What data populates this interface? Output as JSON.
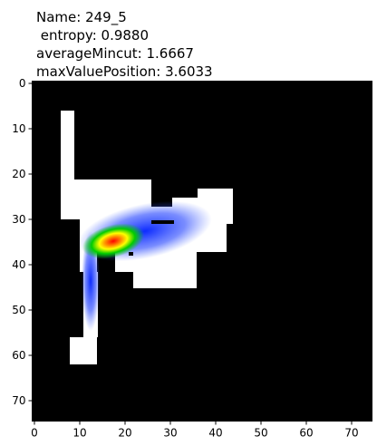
{
  "chart_data": {
    "type": "image",
    "title": [
      "Name: 249_5",
      " entropy: 0.9880",
      "averageMincut: 1.6667",
      "maxValuePosition: 3.6033"
    ],
    "xlim": [
      -0.5,
      74.5
    ],
    "xticks": [
      0,
      10,
      20,
      30,
      40,
      50,
      60,
      70
    ],
    "ylim": [
      74.5,
      -0.5
    ],
    "yticks": [
      0,
      10,
      20,
      30,
      40,
      50,
      60,
      70
    ]
  }
}
